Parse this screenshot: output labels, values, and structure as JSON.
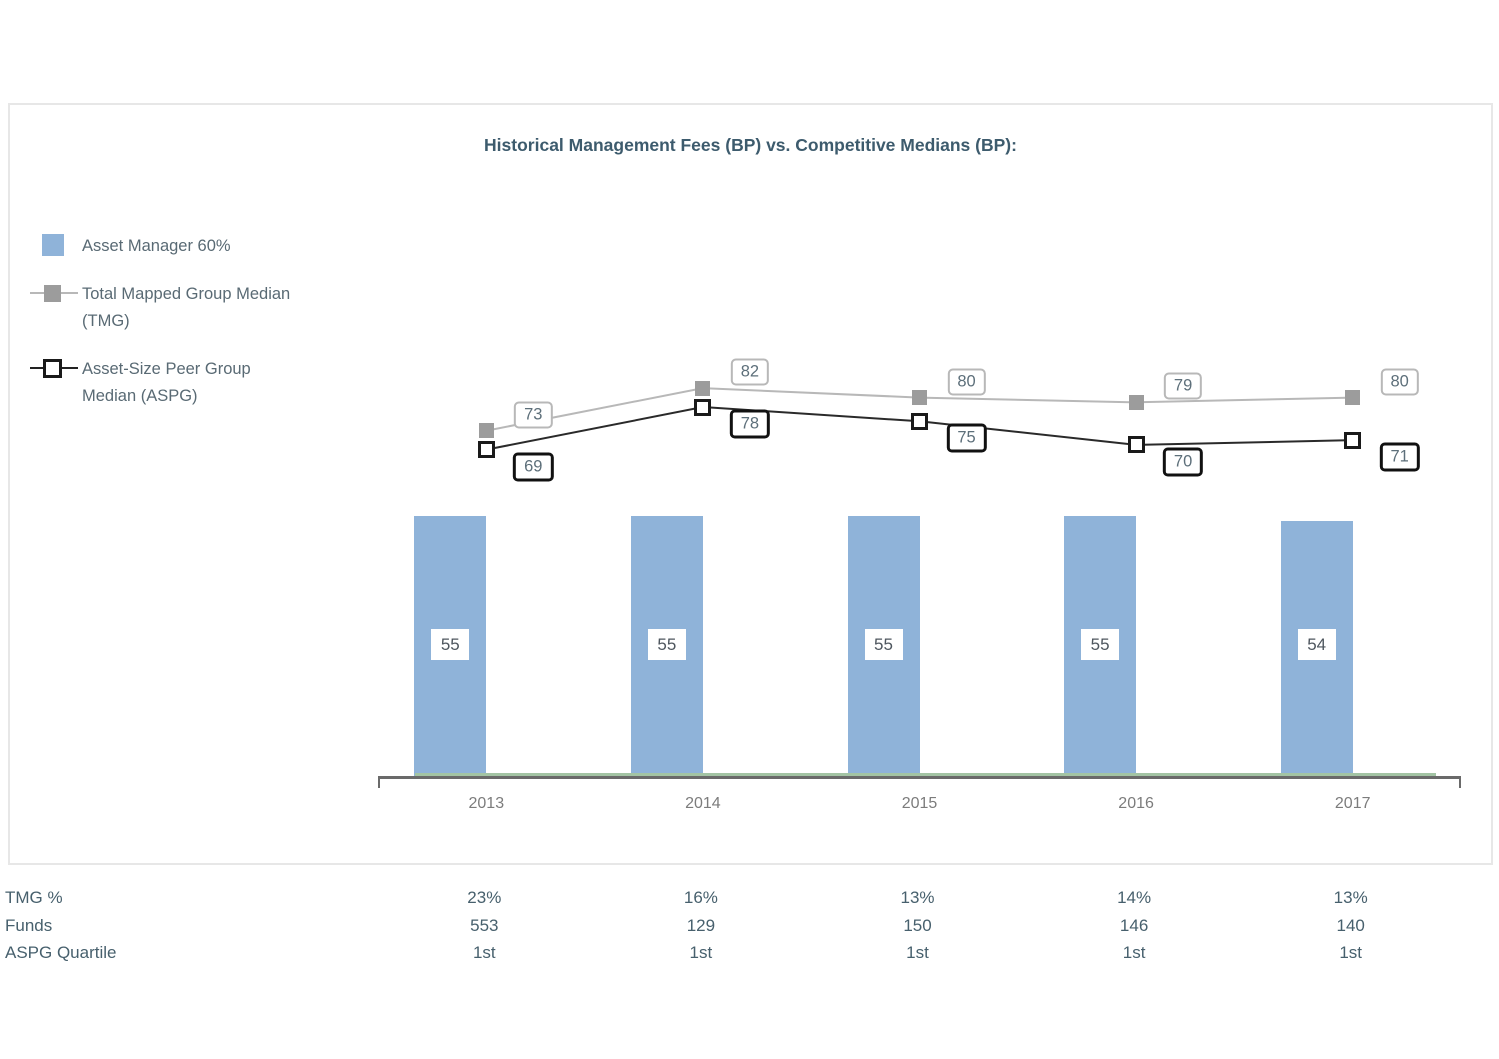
{
  "title": "Historical Management Fees (BP) vs. Competitive Medians (BP):",
  "colors": {
    "bar_blue": "#8fb3d9",
    "tmg_marker_gray": "#9c9c9c",
    "tmg_line_gray": "#b8b8b8",
    "aspg_black": "#1a1a1a",
    "title_text": "#3d5b6d",
    "table_text": "#47606d",
    "year_text": "#7c7c7c",
    "axis_gray": "#6a6a6a",
    "baseline_green": "#a3c4a4"
  },
  "legend": {
    "items": [
      {
        "label": "Asset Manager 60%",
        "marker": "blue-filled-square"
      },
      {
        "label": "Total Mapped Group Median (TMG)",
        "marker": "gray-filled-square-on-line"
      },
      {
        "label": "Asset-Size Peer Group Median (ASPG)",
        "marker": "open-square-on-line"
      }
    ]
  },
  "chart_data": {
    "type": "bar",
    "subtype": "bar-with-line-overlays",
    "title": "Historical Management Fees (BP) vs. Competitive Medians (BP):",
    "categories": [
      "2013",
      "2014",
      "2015",
      "2016",
      "2017"
    ],
    "series": [
      {
        "name": "Asset Manager 60%",
        "type": "bar",
        "values": [
          55,
          55,
          55,
          55,
          54
        ]
      },
      {
        "name": "Total Mapped Group Median (TMG)",
        "type": "line",
        "values": [
          73,
          82,
          80,
          79,
          80
        ]
      },
      {
        "name": "Asset-Size Peer Group Median (ASPG)",
        "type": "line",
        "values": [
          69,
          78,
          75,
          70,
          71
        ]
      }
    ],
    "xlabel": "",
    "ylabel": "",
    "ylim": [
      0,
      110
    ],
    "grid": false,
    "legend_position": "left",
    "value_labels_shown": true
  },
  "table": {
    "rows": [
      {
        "label": "TMG %",
        "values": [
          "23%",
          "16%",
          "13%",
          "14%",
          "13%"
        ]
      },
      {
        "label": "Funds",
        "values": [
          "553",
          "129",
          "150",
          "146",
          "140"
        ]
      },
      {
        "label": "ASPG Quartile",
        "values": [
          "1st",
          "1st",
          "1st",
          "1st",
          "1st"
        ]
      }
    ]
  }
}
